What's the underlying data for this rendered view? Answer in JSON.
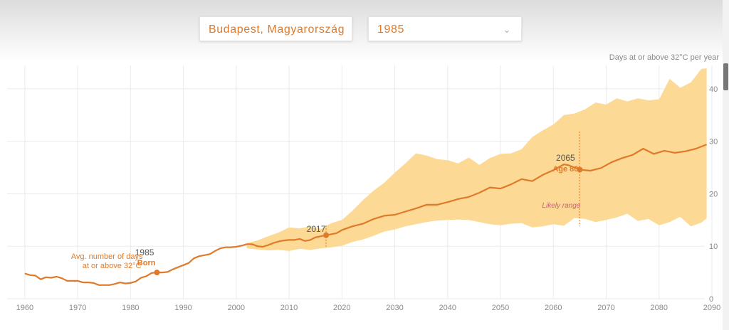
{
  "controls": {
    "location": "Budapest, Magyarország",
    "year": "1985"
  },
  "chart_data": {
    "type": "line",
    "unit_label": "Days at or above 32°C per year",
    "xlim": [
      1958,
      2090
    ],
    "ylim": [
      0,
      45
    ],
    "x_ticks": [
      1960,
      1970,
      1980,
      1990,
      2000,
      2010,
      2020,
      2030,
      2040,
      2050,
      2060,
      2070,
      2080,
      2090
    ],
    "y_ticks": [
      0,
      10,
      20,
      30,
      40
    ],
    "series": [
      {
        "name": "Avg. number of days at or above 32°C",
        "x": [
          1960,
          1961,
          1962,
          1963,
          1964,
          1965,
          1966,
          1967,
          1968,
          1969,
          1970,
          1971,
          1972,
          1973,
          1974,
          1975,
          1976,
          1977,
          1978,
          1979,
          1980,
          1981,
          1982,
          1983,
          1984,
          1985,
          1986,
          1987,
          1988,
          1989,
          1990,
          1991,
          1992,
          1993,
          1994,
          1995,
          1996,
          1997,
          1998,
          1999,
          2000,
          2001,
          2002,
          2003,
          2004,
          2005,
          2006,
          2007,
          2008,
          2009,
          2010,
          2011,
          2012,
          2013,
          2014,
          2015,
          2016,
          2017,
          2018,
          2019,
          2020,
          2022,
          2024,
          2026,
          2028,
          2030,
          2032,
          2034,
          2036,
          2038,
          2040,
          2042,
          2044,
          2046,
          2048,
          2050,
          2052,
          2054,
          2056,
          2058,
          2060,
          2062,
          2063,
          2065,
          2067,
          2069,
          2071,
          2073,
          2075,
          2077,
          2079,
          2081,
          2083,
          2085,
          2087,
          2089
        ],
        "y": [
          4.8,
          4.5,
          4.4,
          3.7,
          4.1,
          4.0,
          4.2,
          3.9,
          3.4,
          3.4,
          3.4,
          3.1,
          3.1,
          3.0,
          2.6,
          2.6,
          2.6,
          2.8,
          3.1,
          2.9,
          3.0,
          3.3,
          4.0,
          4.3,
          4.9,
          5.0,
          5.0,
          5.1,
          5.6,
          6.0,
          6.4,
          6.8,
          7.7,
          8.1,
          8.3,
          8.5,
          9.1,
          9.6,
          9.8,
          9.8,
          9.9,
          10.1,
          10.4,
          10.4,
          10.0,
          9.9,
          10.2,
          10.6,
          10.9,
          11.1,
          11.2,
          11.2,
          11.4,
          11.0,
          11.2,
          11.7,
          11.9,
          12.1,
          12.3,
          12.5,
          13.1,
          13.8,
          14.3,
          15.2,
          15.8,
          16.0,
          16.6,
          17.2,
          17.9,
          17.9,
          18.4,
          19.0,
          19.4,
          20.2,
          21.2,
          21.0,
          21.8,
          22.8,
          22.4,
          23.6,
          24.5,
          25.6,
          25.4,
          24.6,
          24.4,
          24.9,
          26.0,
          26.8,
          27.4,
          28.6,
          27.6,
          28.2,
          27.8,
          28.1,
          28.6,
          29.4
        ]
      }
    ],
    "likely_range": {
      "x": [
        2002,
        2004,
        2006,
        2008,
        2010,
        2012,
        2014,
        2016,
        2018,
        2020,
        2022,
        2024,
        2026,
        2028,
        2030,
        2032,
        2034,
        2036,
        2038,
        2040,
        2042,
        2044,
        2046,
        2048,
        2050,
        2052,
        2054,
        2056,
        2058,
        2060,
        2062,
        2064,
        2066,
        2068,
        2070,
        2072,
        2074,
        2076,
        2078,
        2080,
        2082,
        2084,
        2086,
        2088,
        2089
      ],
      "low": [
        9.6,
        9.4,
        9.2,
        9.3,
        9.1,
        9.5,
        9.3,
        9.6,
        9.8,
        10.1,
        10.8,
        11.3,
        12.0,
        12.8,
        13.2,
        13.8,
        14.2,
        14.6,
        14.9,
        15.0,
        15.1,
        15.0,
        14.6,
        14.2,
        14.0,
        14.3,
        14.4,
        13.6,
        13.8,
        14.2,
        13.9,
        15.4,
        15.2,
        14.6,
        15.0,
        15.5,
        16.2,
        14.8,
        15.2,
        14.0,
        14.6,
        15.6,
        13.8,
        14.5,
        15.3
      ],
      "high": [
        10.6,
        11.1,
        11.9,
        12.6,
        13.6,
        13.4,
        13.8,
        13.3,
        14.4,
        15.0,
        16.8,
        18.8,
        20.6,
        22.1,
        24.0,
        25.8,
        27.7,
        27.3,
        26.6,
        26.4,
        25.8,
        26.9,
        25.5,
        26.8,
        27.6,
        27.7,
        28.5,
        30.8,
        32.1,
        33.2,
        35.0,
        35.3,
        36.1,
        37.4,
        37.0,
        38.2,
        37.6,
        38.2,
        37.8,
        38.0,
        41.9,
        40.2,
        41.2,
        43.8,
        43.9
      ]
    },
    "annotations": {
      "born": {
        "x": 1985,
        "y": 5.0,
        "year_label": "1985",
        "label": "Born",
        "series_label": "Avg. number of days at or above 32°C"
      },
      "now": {
        "x": 2017,
        "y": 12.1,
        "year_label": "2017"
      },
      "age80": {
        "x": 2065,
        "y": 24.6,
        "year_label": "2065",
        "label": "Age 80",
        "range_label": "Likely range"
      }
    },
    "colors": {
      "line": "#e07a2a",
      "band": "#fcd994",
      "grid": "#ebebeb",
      "tick": "#8a8a8a"
    }
  }
}
